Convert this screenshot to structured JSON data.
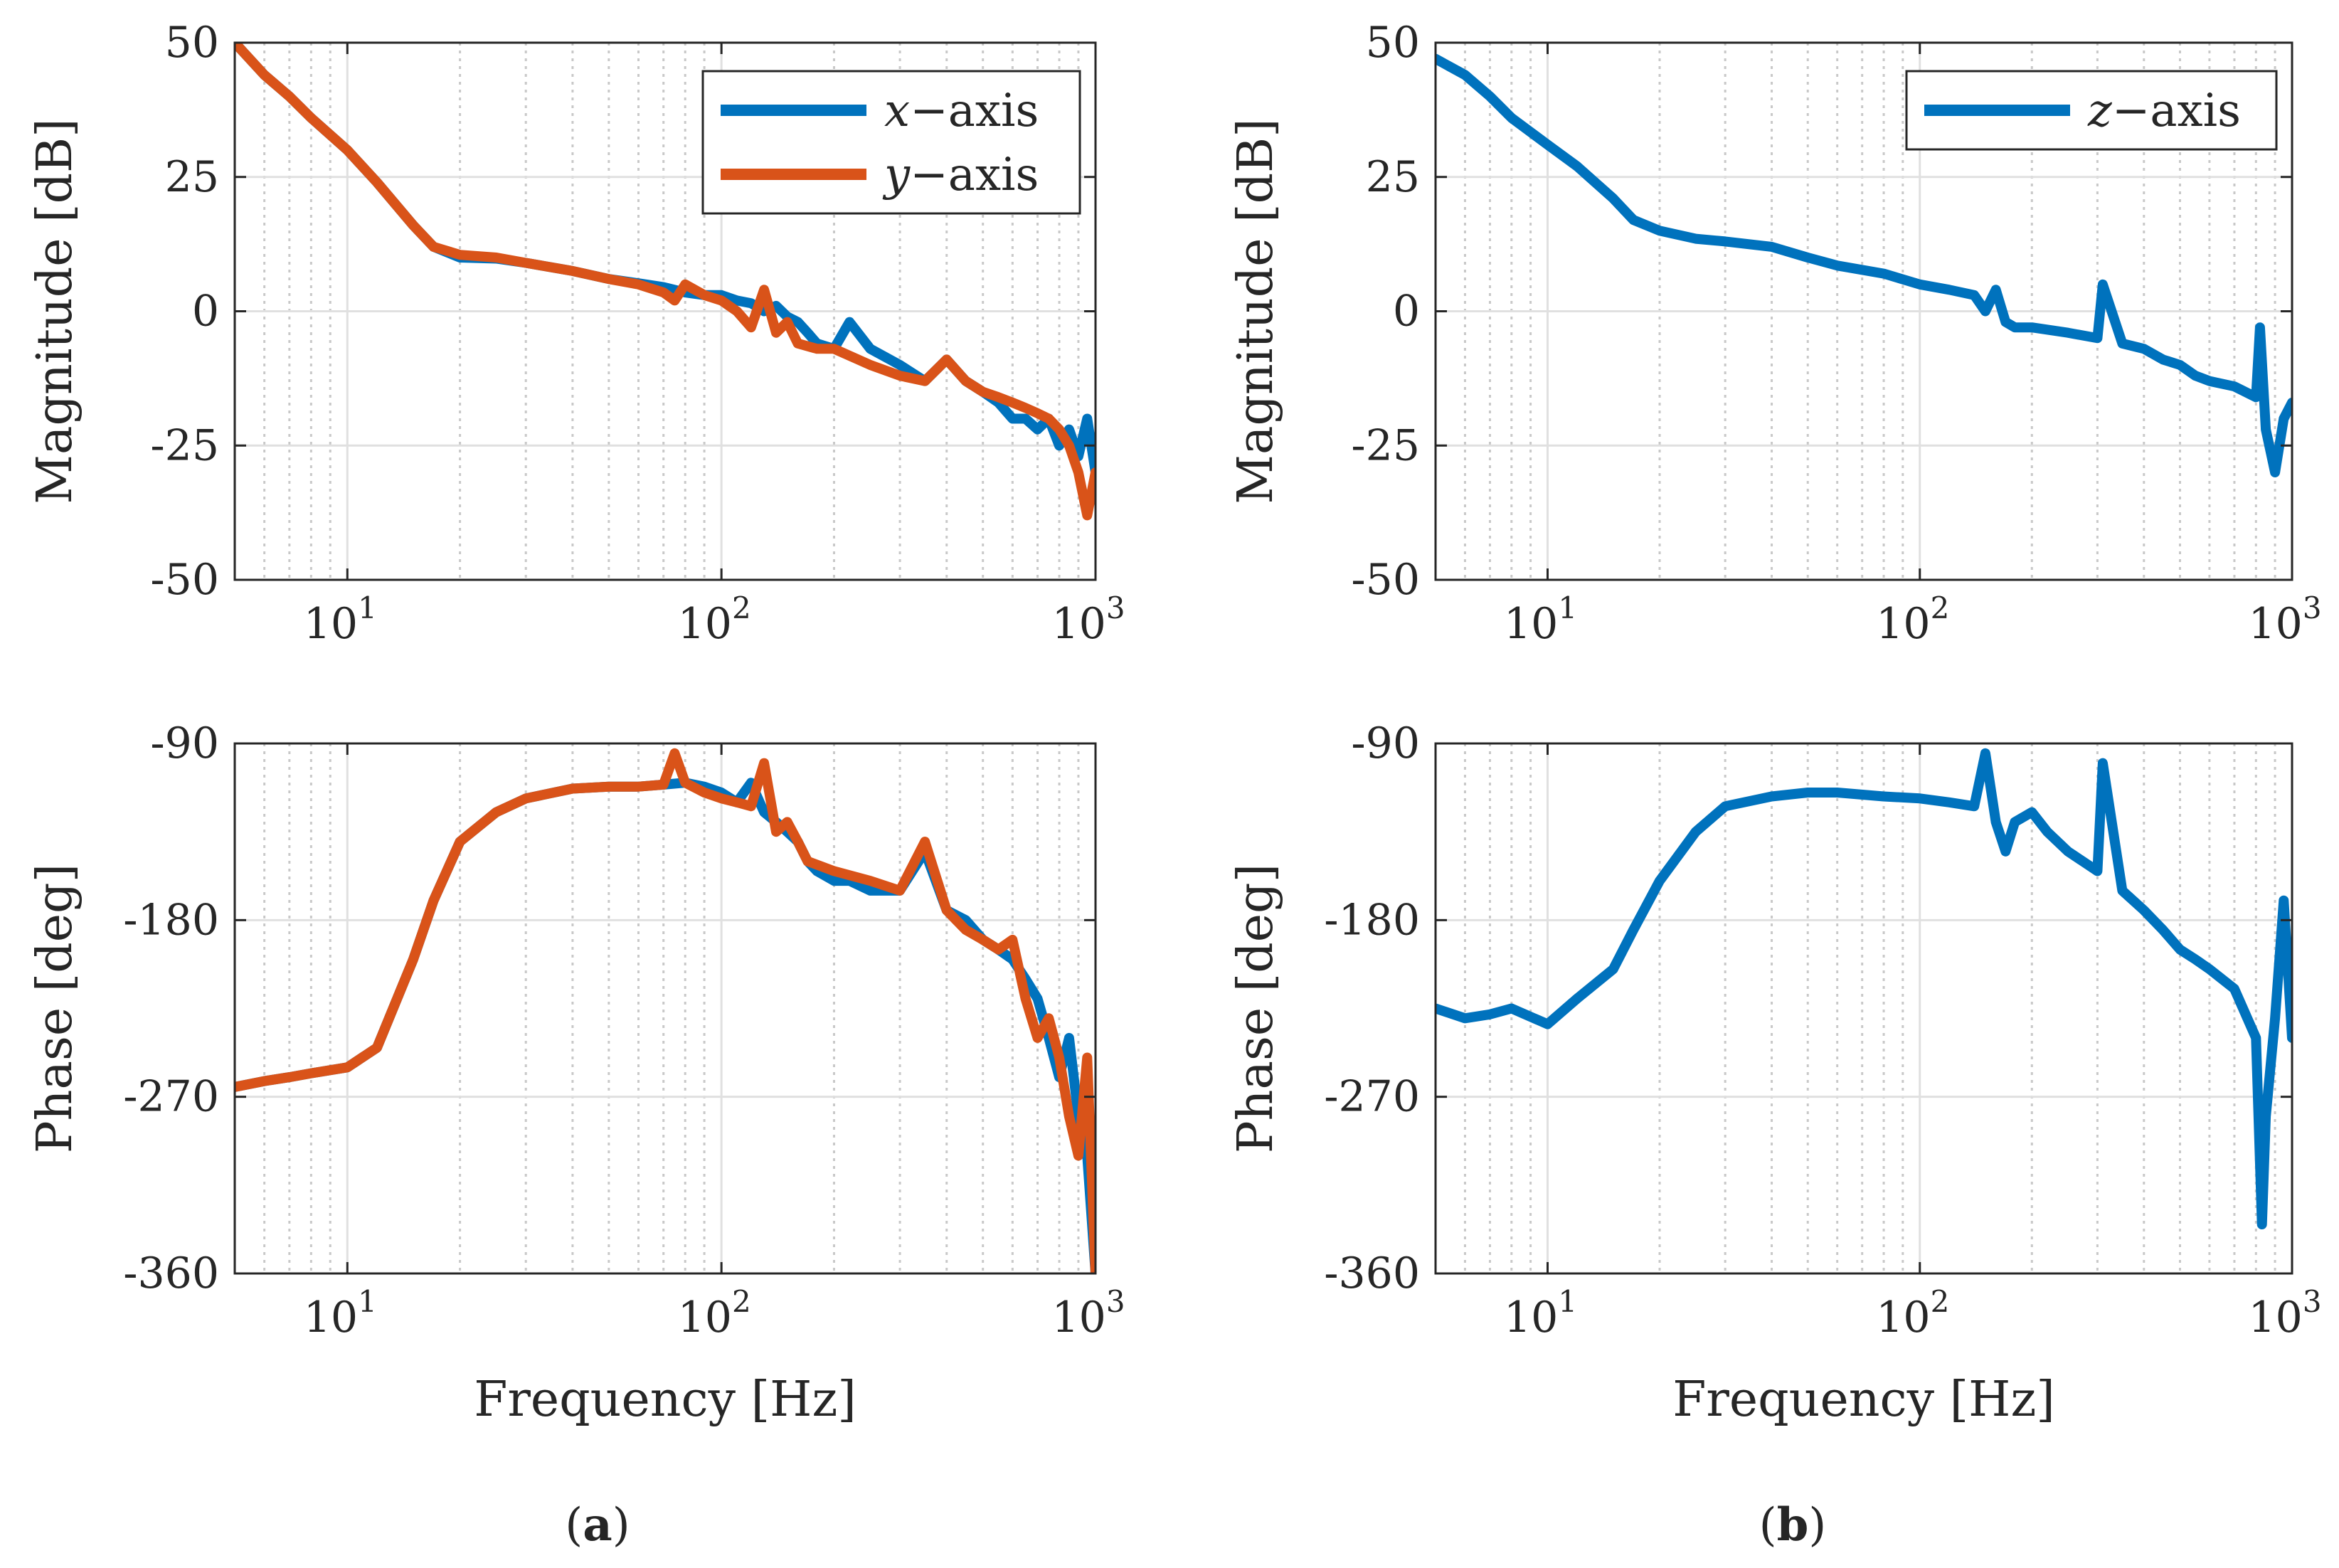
{
  "figure": {
    "panels": [
      {
        "id": "a",
        "caption": {
          "open": "(",
          "letter": "a",
          "close": ")"
        },
        "legend": [
          {
            "name": "x−axis",
            "var": "x",
            "suffix": "−axis",
            "color": "#0072BD"
          },
          {
            "name": "y−axis",
            "var": "y",
            "suffix": "−axis",
            "color": "#D95319"
          }
        ]
      },
      {
        "id": "b",
        "caption": {
          "open": "(",
          "letter": "b",
          "close": ")"
        },
        "legend": [
          {
            "name": "z−axis",
            "var": "z",
            "suffix": "−axis",
            "color": "#0072BD"
          }
        ]
      }
    ],
    "x_tick_labels": [
      {
        "base": "10",
        "exp": "1"
      },
      {
        "base": "10",
        "exp": "2"
      },
      {
        "base": "10",
        "exp": "3"
      }
    ]
  },
  "chart_data": [
    {
      "type": "line",
      "panel": "a",
      "subplot": "magnitude",
      "xscale": "log",
      "xlim": [
        5,
        1000
      ],
      "ylim": [
        -50,
        50
      ],
      "yticks": [
        50,
        25,
        0,
        -25,
        -50
      ],
      "ytick_labels": [
        "50",
        "25",
        "0",
        "-25",
        "-50"
      ],
      "xlabel": "",
      "ylabel": "Magnitude [dB]",
      "grid": true,
      "legend_position": "top-right",
      "series": [
        {
          "name": "x−axis",
          "color": "#0072BD",
          "x": [
            5,
            6,
            7,
            8,
            10,
            12,
            15,
            17,
            20,
            25,
            30,
            40,
            50,
            60,
            70,
            80,
            90,
            100,
            110,
            120,
            130,
            140,
            150,
            160,
            170,
            180,
            200,
            220,
            250,
            300,
            350,
            400,
            450,
            500,
            550,
            600,
            650,
            700,
            750,
            800,
            850,
            900,
            950,
            1000
          ],
          "y": [
            50,
            44,
            40,
            36,
            30,
            24,
            16,
            12,
            10,
            9.8,
            9,
            7.5,
            6,
            5.2,
            4.5,
            3.5,
            3,
            3,
            2,
            1.5,
            0,
            1,
            -1,
            -2,
            -4,
            -6,
            -7,
            -2,
            -7,
            -10,
            -13,
            -9,
            -13,
            -15,
            -17,
            -20,
            -20,
            -22,
            -20,
            -25,
            -22,
            -27,
            -20,
            -30
          ]
        },
        {
          "name": "y−axis",
          "color": "#D95319",
          "x": [
            5,
            6,
            7,
            8,
            10,
            12,
            15,
            17,
            20,
            25,
            30,
            40,
            50,
            60,
            70,
            75,
            80,
            90,
            100,
            110,
            120,
            130,
            140,
            150,
            160,
            180,
            200,
            250,
            300,
            350,
            400,
            450,
            500,
            550,
            600,
            650,
            700,
            750,
            800,
            850,
            900,
            950,
            1000
          ],
          "y": [
            50,
            44,
            40,
            36,
            30,
            24,
            16,
            12,
            10.5,
            10,
            9,
            7.5,
            6,
            5,
            3.5,
            2,
            5,
            3,
            2,
            0,
            -3,
            4,
            -4,
            -2,
            -6,
            -7,
            -7,
            -10,
            -12,
            -13,
            -9,
            -13,
            -15,
            -16,
            -17,
            -18,
            -19,
            -20,
            -22,
            -25,
            -30,
            -38,
            -30
          ]
        }
      ]
    },
    {
      "type": "line",
      "panel": "a",
      "subplot": "phase",
      "xscale": "log",
      "xlim": [
        5,
        1000
      ],
      "ylim": [
        -360,
        -90
      ],
      "yticks": [
        -90,
        -180,
        -270,
        -360
      ],
      "ytick_labels": [
        "-90",
        "-180",
        "-270",
        "-360"
      ],
      "xlabel": "Frequency [Hz]",
      "ylabel": "Phase [deg]",
      "grid": true,
      "series": [
        {
          "name": "x−axis",
          "color": "#0072BD",
          "x": [
            5,
            6,
            7,
            8,
            10,
            12,
            15,
            17,
            20,
            25,
            30,
            40,
            50,
            60,
            70,
            80,
            90,
            100,
            110,
            120,
            130,
            140,
            150,
            160,
            170,
            180,
            200,
            220,
            250,
            300,
            350,
            400,
            450,
            500,
            550,
            600,
            650,
            700,
            750,
            800,
            850,
            900,
            950,
            1000
          ],
          "y": [
            -265,
            -262,
            -260,
            -258,
            -255,
            -245,
            -200,
            -170,
            -140,
            -125,
            -118,
            -113,
            -112,
            -112,
            -111,
            -110,
            -112,
            -115,
            -120,
            -110,
            -125,
            -130,
            -135,
            -140,
            -150,
            -155,
            -160,
            -160,
            -165,
            -165,
            -145,
            -175,
            -180,
            -190,
            -195,
            -200,
            -210,
            -220,
            -240,
            -260,
            -240,
            -280,
            -300,
            -360
          ]
        },
        {
          "name": "y−axis",
          "color": "#D95319",
          "x": [
            5,
            6,
            7,
            8,
            10,
            12,
            15,
            17,
            20,
            25,
            30,
            40,
            50,
            60,
            70,
            75,
            80,
            90,
            100,
            110,
            120,
            130,
            140,
            150,
            160,
            170,
            200,
            250,
            300,
            350,
            400,
            450,
            500,
            550,
            600,
            650,
            700,
            750,
            800,
            850,
            900,
            950,
            1000
          ],
          "y": [
            -265,
            -262,
            -260,
            -258,
            -255,
            -245,
            -200,
            -170,
            -140,
            -125,
            -118,
            -113,
            -112,
            -112,
            -111,
            -95,
            -110,
            -115,
            -118,
            -120,
            -122,
            -100,
            -135,
            -130,
            -140,
            -150,
            -155,
            -160,
            -165,
            -140,
            -175,
            -185,
            -190,
            -195,
            -190,
            -220,
            -240,
            -230,
            -250,
            -280,
            -300,
            -250,
            -360
          ]
        }
      ]
    },
    {
      "type": "line",
      "panel": "b",
      "subplot": "magnitude",
      "xscale": "log",
      "xlim": [
        5,
        1000
      ],
      "ylim": [
        -50,
        50
      ],
      "yticks": [
        50,
        25,
        0,
        -25,
        -50
      ],
      "ytick_labels": [
        "50",
        "25",
        "0",
        "-25",
        "-50"
      ],
      "xlabel": "",
      "ylabel": "Magnitude [dB]",
      "grid": true,
      "legend_position": "top-right",
      "series": [
        {
          "name": "z−axis",
          "color": "#0072BD",
          "x": [
            5,
            6,
            7,
            8,
            10,
            12,
            15,
            17,
            20,
            25,
            30,
            40,
            50,
            60,
            80,
            100,
            120,
            140,
            150,
            160,
            170,
            180,
            200,
            250,
            300,
            310,
            350,
            400,
            450,
            500,
            550,
            600,
            700,
            800,
            820,
            850,
            900,
            950,
            1000
          ],
          "y": [
            47,
            44,
            40,
            36,
            31,
            27,
            21,
            17,
            15,
            13.5,
            13,
            12,
            10,
            8.5,
            7,
            5,
            4,
            3,
            0,
            4,
            -2,
            -3,
            -3,
            -4,
            -5,
            5,
            -6,
            -7,
            -9,
            -10,
            -12,
            -13,
            -14,
            -16,
            -3,
            -22,
            -30,
            -20,
            -17
          ]
        }
      ]
    },
    {
      "type": "line",
      "panel": "b",
      "subplot": "phase",
      "xscale": "log",
      "xlim": [
        5,
        1000
      ],
      "ylim": [
        -360,
        -90
      ],
      "yticks": [
        -90,
        -180,
        -270,
        -360
      ],
      "ytick_labels": [
        "-90",
        "-180",
        "-270",
        "-360"
      ],
      "xlabel": "Frequency [Hz]",
      "ylabel": "Phase [deg]",
      "grid": true,
      "series": [
        {
          "name": "z−axis",
          "color": "#0072BD",
          "x": [
            5,
            6,
            7,
            8,
            10,
            12,
            15,
            17,
            20,
            25,
            30,
            40,
            50,
            60,
            80,
            100,
            120,
            140,
            150,
            160,
            170,
            180,
            200,
            220,
            250,
            300,
            310,
            350,
            400,
            450,
            500,
            550,
            600,
            700,
            800,
            830,
            850,
            900,
            950,
            1000
          ],
          "y": [
            -225,
            -230,
            -228,
            -225,
            -233,
            -220,
            -205,
            -185,
            -160,
            -135,
            -122,
            -117,
            -115,
            -115,
            -117,
            -118,
            -120,
            -122,
            -95,
            -130,
            -145,
            -130,
            -125,
            -135,
            -145,
            -155,
            -100,
            -165,
            -175,
            -185,
            -195,
            -200,
            -205,
            -215,
            -240,
            -335,
            -280,
            -230,
            -170,
            -240
          ]
        }
      ]
    }
  ]
}
